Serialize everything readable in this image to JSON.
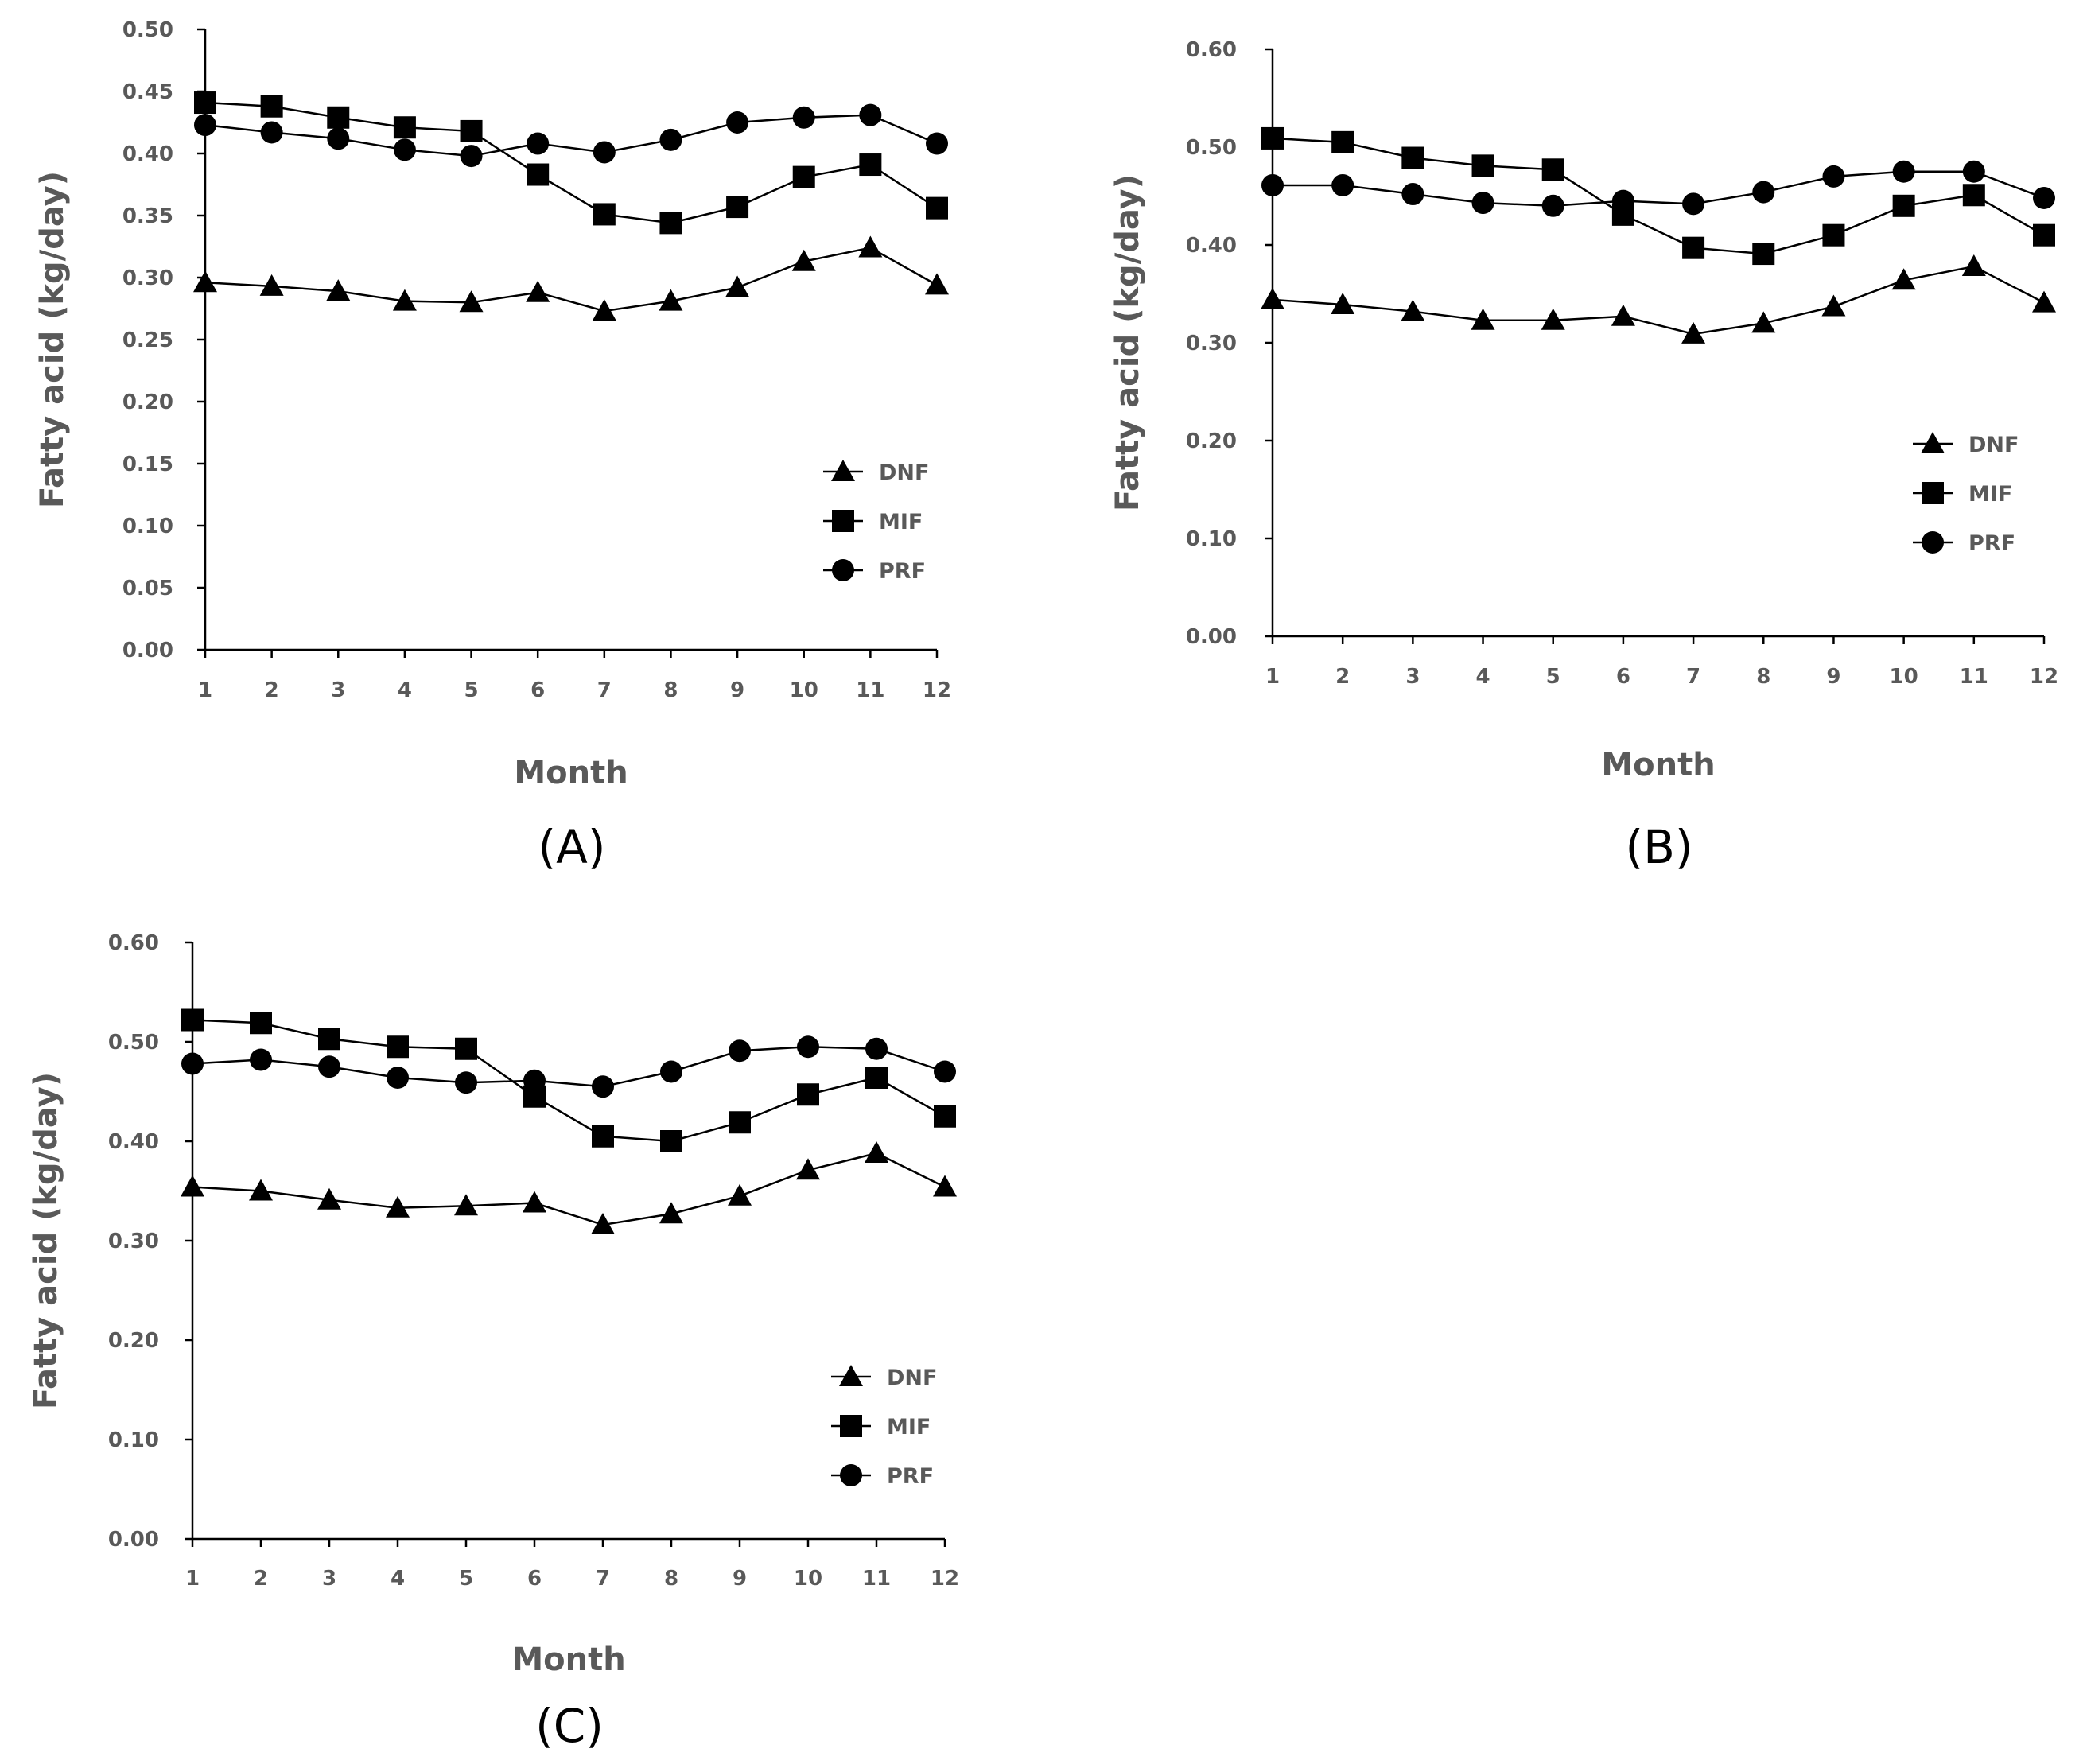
{
  "colors": {
    "axis": "#000000",
    "series": "#000000",
    "text": "#595959"
  },
  "chart_data": [
    {
      "type": "line",
      "panel_label": "(A)",
      "xlabel": "Month",
      "ylabel": "Fatty acid (kg/day)",
      "categories": [
        "1",
        "2",
        "3",
        "4",
        "5",
        "6",
        "7",
        "8",
        "9",
        "10",
        "11",
        "12"
      ],
      "ylim": [
        0,
        0.5
      ],
      "yticks": [
        "0.00",
        "0.05",
        "0.10",
        "0.15",
        "0.20",
        "0.25",
        "0.30",
        "0.35",
        "0.40",
        "0.45",
        "0.50"
      ],
      "grid": false,
      "legend": "right",
      "series": [
        {
          "name": "DNF",
          "marker": "triangle",
          "values": [
            0.296,
            0.293,
            0.289,
            0.281,
            0.28,
            0.288,
            0.273,
            0.281,
            0.292,
            0.313,
            0.324,
            0.294
          ]
        },
        {
          "name": "MIF",
          "marker": "square",
          "values": [
            0.441,
            0.438,
            0.429,
            0.421,
            0.418,
            0.383,
            0.351,
            0.344,
            0.357,
            0.381,
            0.391,
            0.356
          ]
        },
        {
          "name": "PRF",
          "marker": "circle",
          "values": [
            0.423,
            0.417,
            0.412,
            0.403,
            0.398,
            0.408,
            0.401,
            0.411,
            0.425,
            0.429,
            0.431,
            0.408
          ]
        }
      ]
    },
    {
      "type": "line",
      "panel_label": "(B)",
      "xlabel": "Month",
      "ylabel": "Fatty acid (kg/day)",
      "categories": [
        "1",
        "2",
        "3",
        "4",
        "5",
        "6",
        "7",
        "8",
        "9",
        "10",
        "11",
        "12"
      ],
      "ylim": [
        0,
        0.6
      ],
      "yticks": [
        "0.00",
        "0.10",
        "0.20",
        "0.30",
        "0.40",
        "0.50",
        "0.60"
      ],
      "grid": false,
      "legend": "right",
      "series": [
        {
          "name": "DNF",
          "marker": "triangle",
          "values": [
            0.344,
            0.339,
            0.332,
            0.323,
            0.323,
            0.327,
            0.309,
            0.32,
            0.337,
            0.364,
            0.378,
            0.341
          ]
        },
        {
          "name": "MIF",
          "marker": "square",
          "values": [
            0.509,
            0.505,
            0.489,
            0.481,
            0.477,
            0.431,
            0.397,
            0.391,
            0.41,
            0.44,
            0.451,
            0.41
          ]
        },
        {
          "name": "PRF",
          "marker": "circle",
          "values": [
            0.461,
            0.461,
            0.452,
            0.443,
            0.44,
            0.445,
            0.442,
            0.454,
            0.47,
            0.475,
            0.475,
            0.448
          ]
        }
      ]
    },
    {
      "type": "line",
      "panel_label": "(C)",
      "xlabel": "Month",
      "ylabel": "Fatty acid (kg/day)",
      "categories": [
        "1",
        "2",
        "3",
        "4",
        "5",
        "6",
        "7",
        "8",
        "9",
        "10",
        "11",
        "12"
      ],
      "ylim": [
        0,
        0.6
      ],
      "yticks": [
        "0.00",
        "0.10",
        "0.20",
        "0.30",
        "0.40",
        "0.50",
        "0.60"
      ],
      "grid": false,
      "legend": "right",
      "series": [
        {
          "name": "DNF",
          "marker": "triangle",
          "values": [
            0.354,
            0.35,
            0.341,
            0.333,
            0.335,
            0.338,
            0.316,
            0.327,
            0.345,
            0.371,
            0.388,
            0.354
          ]
        },
        {
          "name": "MIF",
          "marker": "square",
          "values": [
            0.522,
            0.519,
            0.503,
            0.495,
            0.493,
            0.445,
            0.405,
            0.4,
            0.419,
            0.447,
            0.464,
            0.425
          ]
        },
        {
          "name": "PRF",
          "marker": "circle",
          "values": [
            0.478,
            0.482,
            0.475,
            0.464,
            0.459,
            0.461,
            0.455,
            0.47,
            0.491,
            0.495,
            0.493,
            0.47
          ]
        }
      ]
    }
  ]
}
